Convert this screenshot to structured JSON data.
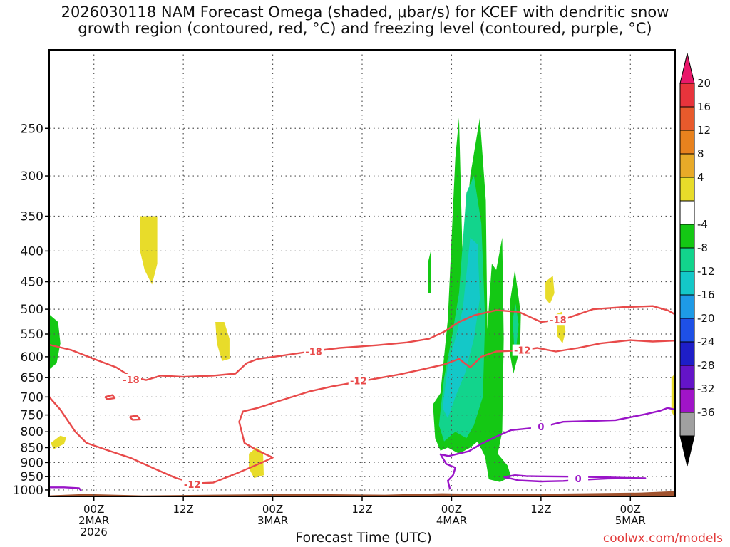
{
  "title": {
    "line1": "2026030118 NAM Forecast Omega (shaded, μbar/s) for KCEF with dendritic snow",
    "line2": "growth region (contoured, red, °C) and freezing level (contoured, purple, °C)"
  },
  "xlabel": "Forecast Time (UTC)",
  "credit": "coolwx.com/models",
  "chart_data": {
    "type": "heatmap",
    "title": "2026030118 NAM Forecast Omega (shaded, μbar/s) for KCEF with dendritic snow growth region (contoured, red, °C) and freezing level (contoured, purple, °C)",
    "xlabel": "Forecast Time (UTC)",
    "ylabel": "",
    "x_units": "forecast hour from 2026-03-01 18Z",
    "xlim": [
      0,
      84
    ],
    "ylim_hPa": [
      1025,
      185
    ],
    "y_scale": "log pressure, inverted",
    "grid": true,
    "y_ticks": [
      250,
      300,
      350,
      400,
      450,
      500,
      550,
      600,
      650,
      700,
      750,
      800,
      850,
      900,
      950,
      1000
    ],
    "x_ticks": [
      {
        "hour": 6,
        "lines": [
          "00Z",
          "2MAR",
          "2026"
        ]
      },
      {
        "hour": 18,
        "lines": [
          "12Z"
        ]
      },
      {
        "hour": 30,
        "lines": [
          "00Z",
          "3MAR"
        ]
      },
      {
        "hour": 42,
        "lines": [
          "12Z"
        ]
      },
      {
        "hour": 54,
        "lines": [
          "00Z",
          "4MAR"
        ]
      },
      {
        "hour": 66,
        "lines": [
          "12Z"
        ]
      },
      {
        "hour": 78,
        "lines": [
          "00Z",
          "5MAR"
        ]
      }
    ],
    "colorbar": {
      "labels": [
        "20",
        "16",
        "12",
        "8",
        "4",
        "-4",
        "-8",
        "-12",
        "-16",
        "-20",
        "-24",
        "-28",
        "-32",
        "-36"
      ],
      "colors": [
        "#e8186a",
        "#e8343c",
        "#e85a2c",
        "#e8821e",
        "#e8aa28",
        "#e8dc2a",
        "#ffffff",
        "#14c814",
        "#12d48c",
        "#14c8c8",
        "#1e9ae6",
        "#1e50e6",
        "#1e1ec8",
        "#6414c8",
        "#a014c8",
        "#a0a0a0",
        "#000000"
      ]
    },
    "shading": [
      {
        "level": "4 to 8",
        "color": "#e8dc2a",
        "polygons": [
          [
            [
              12.2,
              350
            ],
            [
              14.5,
              350
            ],
            [
              14.5,
              420
            ],
            [
              13.8,
              455
            ],
            [
              12.8,
              430
            ],
            [
              12.2,
              400
            ]
          ],
          [
            [
              22.3,
              525
            ],
            [
              23.5,
              525
            ],
            [
              24.2,
              560
            ],
            [
              24.2,
              605
            ],
            [
              23.2,
              610
            ],
            [
              22.5,
              570
            ]
          ],
          [
            [
              26.8,
              870
            ],
            [
              27.8,
              850
            ],
            [
              28.7,
              865
            ],
            [
              28.8,
              945
            ],
            [
              27.5,
              955
            ],
            [
              26.8,
              920
            ]
          ],
          [
            [
              0.2,
              835
            ],
            [
              1.5,
              812
            ],
            [
              2.3,
              818
            ],
            [
              2.0,
              838
            ],
            [
              0.6,
              855
            ]
          ],
          [
            [
              66.6,
              450
            ],
            [
              67.6,
              440
            ],
            [
              67.8,
              470
            ],
            [
              67.2,
              490
            ],
            [
              66.6,
              480
            ]
          ],
          [
            [
              68.0,
              510
            ],
            [
              68.8,
              505
            ],
            [
              69.3,
              545
            ],
            [
              68.9,
              570
            ],
            [
              68.2,
              555
            ]
          ],
          [
            [
              83.5,
              650
            ],
            [
              84,
              640
            ],
            [
              84,
              760
            ],
            [
              83.5,
              740
            ]
          ]
        ]
      },
      {
        "level": "-4 to -8",
        "color": "#14c814",
        "polygons": [
          [
            [
              51.5,
              720
            ],
            [
              52.5,
              690
            ],
            [
              53.5,
              520
            ],
            [
              54.5,
              280
            ],
            [
              55.0,
              240
            ],
            [
              55.5,
              420
            ],
            [
              56.5,
              300
            ],
            [
              57.8,
              240
            ],
            [
              58.6,
              330
            ],
            [
              58.8,
              540
            ],
            [
              59.4,
              420
            ],
            [
              60.0,
              430
            ],
            [
              60.8,
              380
            ],
            [
              61.0,
              560
            ],
            [
              60.8,
              800
            ],
            [
              60.2,
              870
            ],
            [
              61.5,
              910
            ],
            [
              62.0,
              950
            ],
            [
              60.5,
              970
            ],
            [
              59.0,
              960
            ],
            [
              58.5,
              880
            ],
            [
              57.5,
              830
            ],
            [
              56.5,
              850
            ],
            [
              55.0,
              870
            ],
            [
              53.5,
              850
            ],
            [
              52.5,
              860
            ],
            [
              51.8,
              820
            ]
          ],
          [
            [
              61.8,
              490
            ],
            [
              62.5,
              430
            ],
            [
              63.3,
              510
            ],
            [
              63.2,
              580
            ],
            [
              62.3,
              640
            ],
            [
              61.8,
              590
            ]
          ],
          [
            [
              50.8,
              420
            ],
            [
              51.2,
              400
            ],
            [
              51.2,
              470
            ],
            [
              50.8,
              470
            ]
          ],
          [
            [
              0,
              510
            ],
            [
              1.2,
              525
            ],
            [
              1.5,
              570
            ],
            [
              1.0,
              615
            ],
            [
              0,
              630
            ]
          ]
        ]
      },
      {
        "level": "-8 to -12",
        "color": "#12d48c",
        "polygons": [
          [
            [
              52.3,
              780
            ],
            [
              53.0,
              650
            ],
            [
              54.0,
              560
            ],
            [
              55.0,
              470
            ],
            [
              56.0,
              320
            ],
            [
              57.0,
              300
            ],
            [
              58.0,
              360
            ],
            [
              58.5,
              520
            ],
            [
              58.2,
              700
            ],
            [
              57.0,
              780
            ],
            [
              56.0,
              820
            ],
            [
              54.5,
              800
            ],
            [
              53.0,
              830
            ]
          ],
          [
            [
              62.2,
              520
            ],
            [
              62.6,
              490
            ],
            [
              63.0,
              530
            ],
            [
              62.5,
              610
            ]
          ]
        ]
      },
      {
        "level": "-12 to -16",
        "color": "#14c8c8",
        "polygons": [
          [
            [
              52.8,
              730
            ],
            [
              53.5,
              620
            ],
            [
              54.5,
              560
            ],
            [
              55.5,
              500
            ],
            [
              56.5,
              380
            ],
            [
              57.5,
              390
            ],
            [
              57.8,
              480
            ],
            [
              57.0,
              560
            ],
            [
              55.8,
              640
            ],
            [
              54.5,
              700
            ],
            [
              53.5,
              760
            ]
          ]
        ]
      }
    ],
    "contours": [
      {
        "value": "-18",
        "kind": "dendritic",
        "color": "#e84a4a",
        "points": [
          [
            0,
            573
          ],
          [
            3,
            585
          ],
          [
            6,
            605
          ],
          [
            9,
            625
          ],
          [
            11,
            648
          ],
          [
            13,
            656
          ],
          [
            15,
            645
          ],
          [
            18,
            648
          ],
          [
            22,
            645
          ],
          [
            25,
            640
          ],
          [
            26.5,
            615
          ],
          [
            28,
            605
          ],
          [
            31,
            598
          ],
          [
            35,
            588
          ],
          [
            39,
            580
          ],
          [
            44,
            574
          ],
          [
            48,
            568
          ],
          [
            51,
            560
          ],
          [
            53,
            545
          ],
          [
            55,
            525
          ],
          [
            57,
            512
          ],
          [
            60,
            502
          ],
          [
            63,
            505
          ],
          [
            66,
            525
          ],
          [
            69,
            520
          ],
          [
            73,
            500
          ],
          [
            77,
            496
          ],
          [
            81,
            494
          ],
          [
            83,
            502
          ],
          [
            84,
            510
          ]
        ],
        "labels": [
          {
            "x": 11,
            "p": 655
          },
          {
            "x": 35.5,
            "p": 588
          },
          {
            "x": 68.3,
            "p": 521
          }
        ]
      },
      {
        "value": "-12",
        "kind": "dendritic",
        "color": "#e84a4a",
        "points": [
          [
            0,
            700
          ],
          [
            1.5,
            735
          ],
          [
            3.5,
            800
          ],
          [
            5,
            835
          ],
          [
            8,
            860
          ],
          [
            11,
            885
          ],
          [
            14,
            920
          ],
          [
            17,
            955
          ],
          [
            19.5,
            975
          ],
          [
            22,
            972
          ],
          [
            25,
            940
          ],
          [
            27.5,
            912
          ],
          [
            29,
            895
          ],
          [
            30,
            883
          ],
          [
            28,
            860
          ],
          [
            26.2,
            835
          ],
          [
            25.5,
            770
          ],
          [
            26,
            740
          ],
          [
            28,
            730
          ],
          [
            31,
            710
          ],
          [
            35,
            685
          ],
          [
            38,
            672
          ],
          [
            41,
            662
          ],
          [
            44,
            652
          ],
          [
            47,
            642
          ],
          [
            50,
            630
          ],
          [
            53,
            618
          ],
          [
            55,
            605
          ],
          [
            56.5,
            625
          ],
          [
            58,
            600
          ],
          [
            60,
            588
          ],
          [
            63,
            586
          ],
          [
            65.5,
            580
          ],
          [
            68,
            588
          ],
          [
            71,
            580
          ],
          [
            74,
            570
          ],
          [
            78,
            563
          ],
          [
            81,
            566
          ],
          [
            84,
            564
          ]
        ],
        "labels": [
          {
            "x": 19.2,
            "p": 978
          },
          {
            "x": 41.5,
            "p": 658
          },
          {
            "x": 63.5,
            "p": 585
          }
        ]
      },
      {
        "value": "-12",
        "kind": "dendritic-closed",
        "color": "#e84a4a",
        "points": [
          [
            7.5,
            700
          ],
          [
            8.5,
            695
          ],
          [
            8.8,
            703
          ],
          [
            7.8,
            706
          ],
          [
            7.5,
            700
          ]
        ],
        "labels": []
      },
      {
        "value": "-12",
        "kind": "dendritic-closed",
        "color": "#e84a4a",
        "points": [
          [
            10.8,
            755
          ],
          [
            11.8,
            752
          ],
          [
            12.2,
            763
          ],
          [
            11.2,
            764
          ],
          [
            10.8,
            755
          ]
        ],
        "labels": []
      },
      {
        "value": "0",
        "kind": "freezing",
        "color": "#9a14c8",
        "points": [
          [
            0,
            990
          ],
          [
            2,
            990
          ],
          [
            4,
            993
          ],
          [
            4.3,
            1003
          ]
        ],
        "labels": []
      },
      {
        "value": "0",
        "kind": "freezing",
        "color": "#9a14c8",
        "points": [
          [
            53.8,
            998
          ],
          [
            53.5,
            965
          ],
          [
            54.2,
            945
          ],
          [
            54.5,
            918
          ],
          [
            53.3,
            905
          ],
          [
            52.5,
            872
          ],
          [
            53.6,
            878
          ],
          [
            54.6,
            872
          ],
          [
            56.3,
            862
          ],
          [
            58,
            838
          ],
          [
            60,
            815
          ],
          [
            62,
            795
          ],
          [
            66,
            786
          ],
          [
            69,
            770
          ],
          [
            72,
            768
          ],
          [
            76,
            765
          ],
          [
            80,
            748
          ],
          [
            82,
            738
          ],
          [
            83,
            730
          ],
          [
            84,
            735
          ]
        ],
        "labels": [
          {
            "x": 66,
            "p": 784
          }
        ]
      },
      {
        "value": "0",
        "kind": "freezing",
        "color": "#9a14c8",
        "points": [
          [
            61,
            952
          ],
          [
            62,
            957
          ],
          [
            63,
            964
          ],
          [
            66,
            968
          ],
          [
            69,
            966
          ],
          [
            72,
            961
          ],
          [
            75,
            957
          ],
          [
            78,
            956
          ],
          [
            80,
            956
          ],
          [
            78,
            955
          ],
          [
            74,
            952
          ],
          [
            70,
            950
          ],
          [
            66,
            949
          ],
          [
            64,
            948
          ],
          [
            62.5,
            945
          ],
          [
            61,
            952
          ]
        ],
        "labels": [
          {
            "x": 71,
            "p": 957
          }
        ]
      }
    ],
    "terrain": {
      "color": "#a0522d",
      "top_hPa": 1013
    }
  }
}
